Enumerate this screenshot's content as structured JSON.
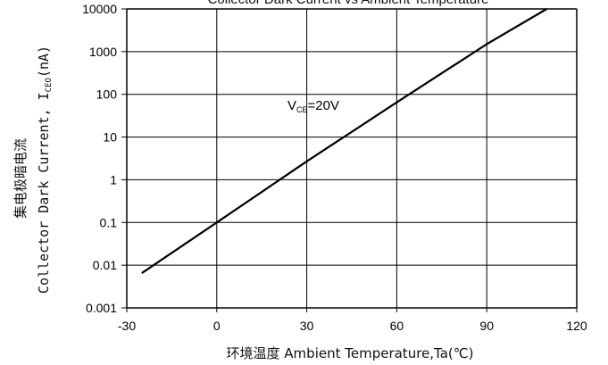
{
  "chart_data": {
    "type": "line",
    "title": "Collector Dark Current vs Ambient Temperature",
    "xlabel": "环境温度 Ambient Temperature,Ta(℃)",
    "ylabel_cn": "集电极暗电流",
    "ylabel_en": "Collector Dark Current, I",
    "ylabel_sub": "CEO",
    "ylabel_unit": "(nA)",
    "xlim": [
      -30,
      120
    ],
    "ylim": [
      0.001,
      10000
    ],
    "yscale": "log",
    "grid": true,
    "x_ticks": [
      -30,
      0,
      30,
      60,
      90,
      120
    ],
    "y_ticks": [
      0.001,
      0.01,
      0.1,
      1,
      10,
      100,
      1000,
      10000
    ],
    "x_tick_labels": [
      "-30",
      "0",
      "30",
      "60",
      "90",
      "120"
    ],
    "y_tick_labels": [
      "0.001",
      "0.01",
      "0.1",
      "1",
      "10",
      "100",
      "1000",
      "10000"
    ],
    "annotation": {
      "main": "V",
      "sub": "CE",
      "rest": "=20V"
    },
    "series": [
      {
        "x": [
          -25,
          0,
          30,
          60,
          90,
          110
        ],
        "y": [
          0.0065,
          0.1,
          2.7,
          65,
          1500,
          10000
        ]
      }
    ]
  }
}
